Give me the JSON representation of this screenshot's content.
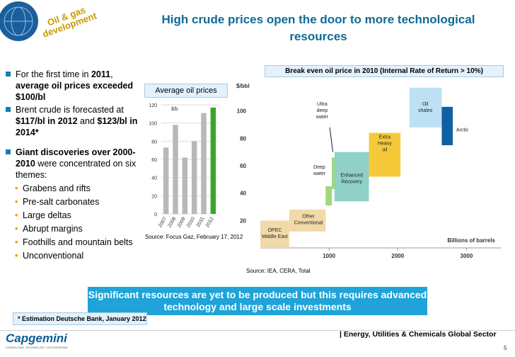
{
  "header": {
    "logo_text": "Oil & gas development",
    "title": "High crude prices open the door to more technological resources"
  },
  "bullets": {
    "b1": {
      "pre": "For the first time in ",
      "year": "2011",
      "comma": ",",
      "bold": "average oil prices exceeded $100/bl"
    },
    "b2": {
      "pre": "Brent crude is forecasted at ",
      "v1": "$117/bl in 2012",
      "and": " and ",
      "v2": "$123/bl in 2014*"
    },
    "b3": {
      "bold": "Giant discoveries over 2000-2010",
      "rest": " were concentrated on six themes:"
    },
    "themes": [
      "Grabens and rifts",
      "Pre-salt carbonates",
      "Large deltas",
      "Abrupt margins",
      "Foothills and mountain belts",
      "Unconventional"
    ]
  },
  "chart_data": [
    {
      "type": "bar",
      "title": "Average oil prices",
      "ylabel": "$/b",
      "categories": [
        "2007",
        "2008",
        "2009",
        "2010",
        "2011",
        "2012"
      ],
      "values": [
        73,
        98,
        62,
        80,
        111,
        117
      ],
      "highlight_last": true,
      "ylim": [
        0,
        120
      ],
      "yticks": [
        0,
        20,
        40,
        60,
        80,
        100,
        120
      ],
      "grid": true,
      "source": "Source: Focus Gaz, February 17, 2012",
      "colors": {
        "bars": "#b8b8b8",
        "highlight": "#3aa52c"
      }
    },
    {
      "type": "bar",
      "title": "Break even oil price in 2010 (Internal Rate of Return > 10%)",
      "ylabel": "$/bbl",
      "xlabel": "Billions of barrels",
      "xlim": [
        0,
        3500
      ],
      "ylim": [
        0,
        120
      ],
      "yticks": [
        20,
        40,
        60,
        80,
        100
      ],
      "xticks": [
        1000,
        2000,
        3000
      ],
      "segments": [
        {
          "name": "OPEC Middle East",
          "x0": 0,
          "x1": 420,
          "y0": 0,
          "y1": 20,
          "color": "#f2d9a8"
        },
        {
          "name": "Other Conventional",
          "x0": 420,
          "x1": 950,
          "y0": 12,
          "y1": 28,
          "color": "#f2d9a8"
        },
        {
          "name": "Deep water",
          "x0": 950,
          "x1": 1040,
          "y0": 31,
          "y1": 45,
          "color": "#9cd97a"
        },
        {
          "name": "Ultra deep water",
          "x0": 1040,
          "x1": 1080,
          "y0": 43,
          "y1": 66,
          "color": "#9cd97a"
        },
        {
          "name": "Enhanced Recovery",
          "x0": 1080,
          "x1": 1580,
          "y0": 34,
          "y1": 70,
          "color": "#8fd0c8"
        },
        {
          "name": "Extra Heavy oil",
          "x0": 1580,
          "x1": 2040,
          "y0": 52,
          "y1": 84,
          "color": "#f6c93a"
        },
        {
          "name": "Oil shales",
          "x0": 2170,
          "x1": 2640,
          "y0": 88,
          "y1": 117,
          "color": "#bde0f4"
        },
        {
          "name": "Arctic",
          "x0": 2640,
          "x1": 2800,
          "y0": 75,
          "y1": 103,
          "color": "#0f5fa3"
        }
      ],
      "source": "Source: IEA, CERA, Total"
    }
  ],
  "banner": "Significant resources are yet to be produced but this requires advanced technology and large scale investments",
  "footnote": "* Estimation Deutsche Bank, January 2012",
  "footer": {
    "logo": "Capgemini",
    "tagline": "CONSULTING. TECHNOLOGY. OUTSOURCING",
    "sector": "| Energy, Utilities & Chemicals Global Sector",
    "page": "5"
  }
}
